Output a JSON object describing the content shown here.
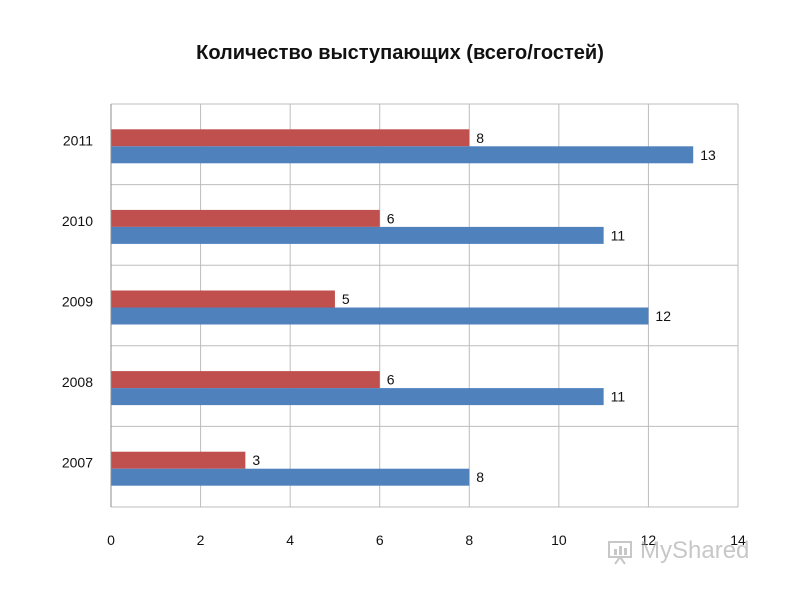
{
  "chart_data": {
    "type": "bar",
    "orientation": "horizontal",
    "title": "Количество выступающих (всего/гостей)",
    "categories": [
      "2007",
      "2008",
      "2009",
      "2010",
      "2011"
    ],
    "series": [
      {
        "values": [
          3,
          6,
          5,
          6,
          8
        ],
        "color": "#c0504d"
      },
      {
        "values": [
          8,
          11,
          12,
          11,
          13
        ],
        "color": "#4f81bd"
      }
    ],
    "xlim": [
      0,
      14
    ],
    "xticks": [
      "0",
      "2",
      "4",
      "6",
      "8",
      "10",
      "12",
      "14"
    ],
    "grid": true,
    "legend": "none"
  },
  "watermark": {
    "text": "MyShared"
  }
}
